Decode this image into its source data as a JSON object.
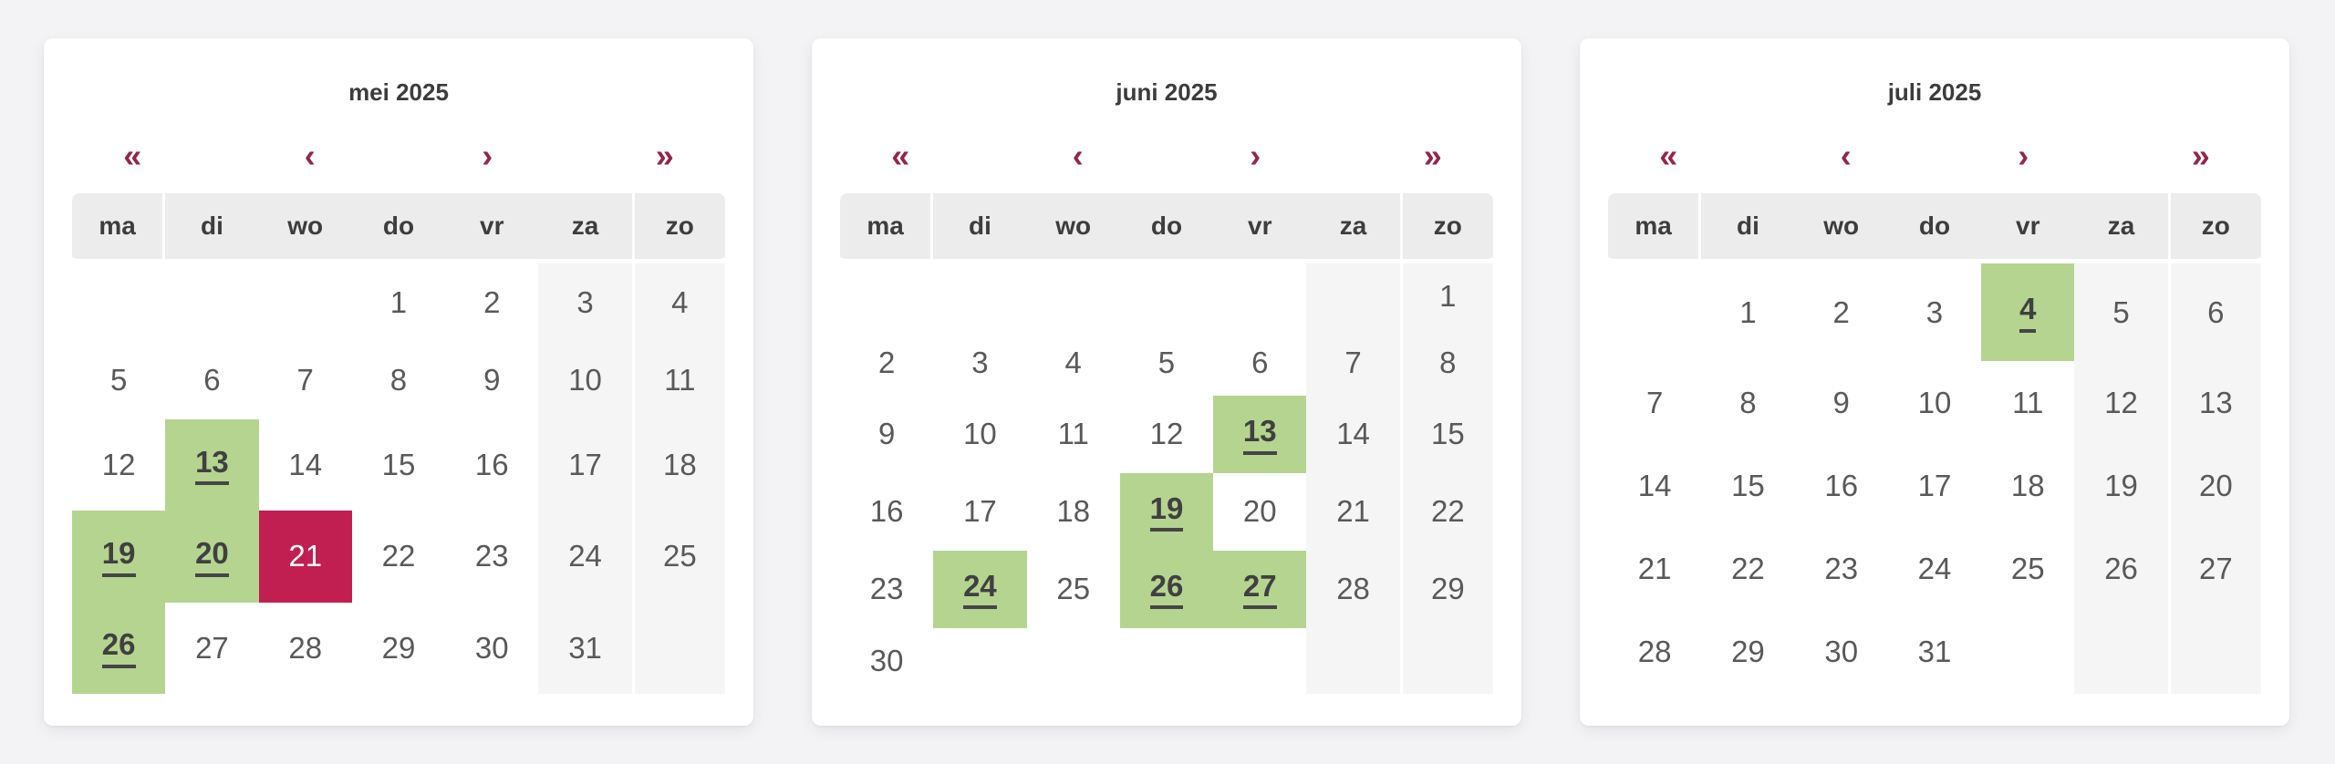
{
  "colors": {
    "page_background": "#f3f3f5",
    "card_background": "#ffffff",
    "accent_maroon": "#932749",
    "available_green": "#b5d490",
    "selected_crimson": "#c11f51",
    "weekend_gray": "#f5f5f5",
    "header_gray": "#ececec"
  },
  "nav": {
    "prev_year": "«",
    "prev_month": "‹",
    "next_month": "›",
    "next_year": "»"
  },
  "weekdays": [
    "ma",
    "di",
    "wo",
    "do",
    "vr",
    "za",
    "zo"
  ],
  "calendars": [
    {
      "title": "mei 2025",
      "weeks": [
        [
          {
            "day": "",
            "state": "normal"
          },
          {
            "day": "",
            "state": "normal"
          },
          {
            "day": "",
            "state": "normal"
          },
          {
            "day": "1",
            "state": "normal"
          },
          {
            "day": "2",
            "state": "normal"
          },
          {
            "day": "3",
            "state": "weekend"
          },
          {
            "day": "4",
            "state": "weekend"
          }
        ],
        [
          {
            "day": "5",
            "state": "normal"
          },
          {
            "day": "6",
            "state": "normal"
          },
          {
            "day": "7",
            "state": "normal"
          },
          {
            "day": "8",
            "state": "normal"
          },
          {
            "day": "9",
            "state": "normal"
          },
          {
            "day": "10",
            "state": "weekend"
          },
          {
            "day": "11",
            "state": "weekend"
          }
        ],
        [
          {
            "day": "12",
            "state": "normal"
          },
          {
            "day": "13",
            "state": "available"
          },
          {
            "day": "14",
            "state": "normal"
          },
          {
            "day": "15",
            "state": "normal"
          },
          {
            "day": "16",
            "state": "normal"
          },
          {
            "day": "17",
            "state": "weekend"
          },
          {
            "day": "18",
            "state": "weekend"
          }
        ],
        [
          {
            "day": "19",
            "state": "available"
          },
          {
            "day": "20",
            "state": "available"
          },
          {
            "day": "21",
            "state": "selected"
          },
          {
            "day": "22",
            "state": "normal"
          },
          {
            "day": "23",
            "state": "normal"
          },
          {
            "day": "24",
            "state": "weekend"
          },
          {
            "day": "25",
            "state": "weekend"
          }
        ],
        [
          {
            "day": "26",
            "state": "available"
          },
          {
            "day": "27",
            "state": "normal"
          },
          {
            "day": "28",
            "state": "normal"
          },
          {
            "day": "29",
            "state": "normal"
          },
          {
            "day": "30",
            "state": "normal"
          },
          {
            "day": "31",
            "state": "weekend"
          },
          {
            "day": "",
            "state": "weekend"
          }
        ]
      ]
    },
    {
      "title": "juni 2025",
      "weeks": [
        [
          {
            "day": "",
            "state": "normal"
          },
          {
            "day": "",
            "state": "normal"
          },
          {
            "day": "",
            "state": "normal"
          },
          {
            "day": "",
            "state": "normal"
          },
          {
            "day": "",
            "state": "normal"
          },
          {
            "day": "",
            "state": "weekend"
          },
          {
            "day": "1",
            "state": "weekend"
          }
        ],
        [
          {
            "day": "2",
            "state": "normal"
          },
          {
            "day": "3",
            "state": "normal"
          },
          {
            "day": "4",
            "state": "normal"
          },
          {
            "day": "5",
            "state": "normal"
          },
          {
            "day": "6",
            "state": "normal"
          },
          {
            "day": "7",
            "state": "weekend"
          },
          {
            "day": "8",
            "state": "weekend"
          }
        ],
        [
          {
            "day": "9",
            "state": "normal"
          },
          {
            "day": "10",
            "state": "normal"
          },
          {
            "day": "11",
            "state": "normal"
          },
          {
            "day": "12",
            "state": "normal"
          },
          {
            "day": "13",
            "state": "available"
          },
          {
            "day": "14",
            "state": "weekend"
          },
          {
            "day": "15",
            "state": "weekend"
          }
        ],
        [
          {
            "day": "16",
            "state": "normal"
          },
          {
            "day": "17",
            "state": "normal"
          },
          {
            "day": "18",
            "state": "normal"
          },
          {
            "day": "19",
            "state": "available"
          },
          {
            "day": "20",
            "state": "normal"
          },
          {
            "day": "21",
            "state": "weekend"
          },
          {
            "day": "22",
            "state": "weekend"
          }
        ],
        [
          {
            "day": "23",
            "state": "normal"
          },
          {
            "day": "24",
            "state": "available"
          },
          {
            "day": "25",
            "state": "normal"
          },
          {
            "day": "26",
            "state": "available"
          },
          {
            "day": "27",
            "state": "available"
          },
          {
            "day": "28",
            "state": "weekend"
          },
          {
            "day": "29",
            "state": "weekend"
          }
        ],
        [
          {
            "day": "30",
            "state": "normal"
          },
          {
            "day": "",
            "state": "normal"
          },
          {
            "day": "",
            "state": "normal"
          },
          {
            "day": "",
            "state": "normal"
          },
          {
            "day": "",
            "state": "normal"
          },
          {
            "day": "",
            "state": "weekend"
          },
          {
            "day": "",
            "state": "weekend"
          }
        ]
      ]
    },
    {
      "title": "juli 2025",
      "weeks": [
        [
          {
            "day": "",
            "state": "normal"
          },
          {
            "day": "1",
            "state": "normal"
          },
          {
            "day": "2",
            "state": "normal"
          },
          {
            "day": "3",
            "state": "normal"
          },
          {
            "day": "4",
            "state": "available"
          },
          {
            "day": "5",
            "state": "weekend"
          },
          {
            "day": "6",
            "state": "weekend"
          }
        ],
        [
          {
            "day": "7",
            "state": "normal"
          },
          {
            "day": "8",
            "state": "normal"
          },
          {
            "day": "9",
            "state": "normal"
          },
          {
            "day": "10",
            "state": "normal"
          },
          {
            "day": "11",
            "state": "normal"
          },
          {
            "day": "12",
            "state": "weekend"
          },
          {
            "day": "13",
            "state": "weekend"
          }
        ],
        [
          {
            "day": "14",
            "state": "normal"
          },
          {
            "day": "15",
            "state": "normal"
          },
          {
            "day": "16",
            "state": "normal"
          },
          {
            "day": "17",
            "state": "normal"
          },
          {
            "day": "18",
            "state": "normal"
          },
          {
            "day": "19",
            "state": "weekend"
          },
          {
            "day": "20",
            "state": "weekend"
          }
        ],
        [
          {
            "day": "21",
            "state": "normal"
          },
          {
            "day": "22",
            "state": "normal"
          },
          {
            "day": "23",
            "state": "normal"
          },
          {
            "day": "24",
            "state": "normal"
          },
          {
            "day": "25",
            "state": "normal"
          },
          {
            "day": "26",
            "state": "weekend"
          },
          {
            "day": "27",
            "state": "weekend"
          }
        ],
        [
          {
            "day": "28",
            "state": "normal"
          },
          {
            "day": "29",
            "state": "normal"
          },
          {
            "day": "30",
            "state": "normal"
          },
          {
            "day": "31",
            "state": "normal"
          },
          {
            "day": "",
            "state": "normal"
          },
          {
            "day": "",
            "state": "weekend"
          },
          {
            "day": "",
            "state": "weekend"
          }
        ]
      ]
    }
  ]
}
